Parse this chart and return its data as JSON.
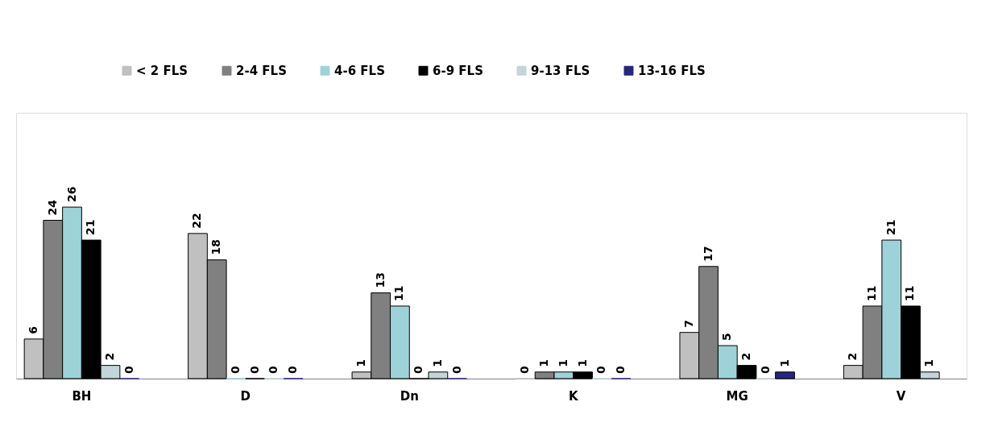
{
  "chart_data": {
    "type": "bar",
    "categories": [
      "BH",
      "D",
      "Dn",
      "K",
      "MG",
      "V"
    ],
    "series": [
      {
        "name": "< 2 FLS",
        "color": "#c0c0c0",
        "values": [
          6,
          22,
          1,
          0,
          7,
          2
        ]
      },
      {
        "name": "2-4 FLS",
        "color": "#808080",
        "values": [
          24,
          18,
          13,
          1,
          17,
          11
        ]
      },
      {
        "name": "4-6 FLS",
        "color": "#9dd3d8",
        "values": [
          26,
          0,
          11,
          1,
          5,
          21
        ]
      },
      {
        "name": "6-9 FLS",
        "color": "#000000",
        "values": [
          21,
          0,
          0,
          1,
          2,
          11
        ]
      },
      {
        "name": "9-13 FLS",
        "color": "#c3d5d8",
        "values": [
          2,
          0,
          1,
          0,
          0,
          1
        ]
      },
      {
        "name": "13-16 FLS",
        "color": "#262680",
        "values": [
          0,
          0,
          0,
          0,
          1,
          null
        ]
      }
    ],
    "data_labels": true,
    "legend": "top",
    "grid": false
  }
}
